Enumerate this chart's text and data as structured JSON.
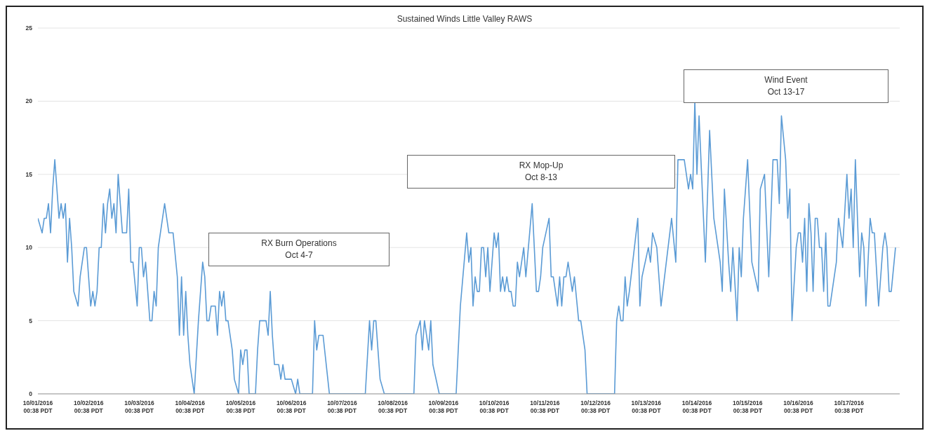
{
  "chart_data": {
    "type": "line",
    "title": "Sustained Winds Little Valley RAWS",
    "x": [
      "2016-10-01T00:38",
      "2016-10-01T02:38",
      "2016-10-01T03:38",
      "2016-10-01T04:38",
      "2016-10-01T05:38",
      "2016-10-01T06:38",
      "2016-10-01T07:38",
      "2016-10-01T08:38",
      "2016-10-01T09:38",
      "2016-10-01T10:38",
      "2016-10-01T11:38",
      "2016-10-01T12:38",
      "2016-10-01T13:38",
      "2016-10-01T14:38",
      "2016-10-01T15:38",
      "2016-10-01T16:38",
      "2016-10-01T17:38",
      "2016-10-01T19:38",
      "2016-10-01T20:38",
      "2016-10-01T22:38",
      "2016-10-01T23:38",
      "2016-10-02T00:38",
      "2016-10-02T01:38",
      "2016-10-02T02:38",
      "2016-10-02T03:38",
      "2016-10-02T04:38",
      "2016-10-02T05:38",
      "2016-10-02T06:38",
      "2016-10-02T07:38",
      "2016-10-02T08:38",
      "2016-10-02T09:38",
      "2016-10-02T10:38",
      "2016-10-02T11:38",
      "2016-10-02T12:38",
      "2016-10-02T13:38",
      "2016-10-02T14:38",
      "2016-10-02T16:38",
      "2016-10-02T18:38",
      "2016-10-02T19:38",
      "2016-10-02T20:38",
      "2016-10-02T21:38",
      "2016-10-02T23:38",
      "2016-10-03T00:38",
      "2016-10-03T01:38",
      "2016-10-03T02:38",
      "2016-10-03T03:38",
      "2016-10-03T04:38",
      "2016-10-03T05:38",
      "2016-10-03T06:38",
      "2016-10-03T07:38",
      "2016-10-03T08:38",
      "2016-10-03T09:38",
      "2016-10-03T12:38",
      "2016-10-03T14:38",
      "2016-10-03T16:38",
      "2016-10-03T18:38",
      "2016-10-03T19:38",
      "2016-10-03T20:38",
      "2016-10-03T21:38",
      "2016-10-03T22:38",
      "2016-10-03T23:38",
      "2016-10-04T00:38",
      "2016-10-04T01:38",
      "2016-10-04T02:38",
      "2016-10-04T04:38",
      "2016-10-04T06:38",
      "2016-10-04T07:38",
      "2016-10-04T08:38",
      "2016-10-04T09:38",
      "2016-10-04T10:38",
      "2016-10-04T12:38",
      "2016-10-04T13:38",
      "2016-10-04T14:38",
      "2016-10-04T15:38",
      "2016-10-04T16:38",
      "2016-10-04T17:38",
      "2016-10-04T18:38",
      "2016-10-04T20:38",
      "2016-10-04T21:38",
      "2016-10-04T23:38",
      "2016-10-05T00:38",
      "2016-10-05T01:38",
      "2016-10-05T02:38",
      "2016-10-05T03:38",
      "2016-10-05T04:38",
      "2016-10-05T07:38",
      "2016-10-05T08:38",
      "2016-10-05T09:38",
      "2016-10-05T12:38",
      "2016-10-05T13:38",
      "2016-10-05T14:38",
      "2016-10-05T15:38",
      "2016-10-05T16:38",
      "2016-10-05T18:38",
      "2016-10-05T19:38",
      "2016-10-05T20:38",
      "2016-10-05T21:38",
      "2016-10-06T00:38",
      "2016-10-06T02:38",
      "2016-10-06T03:38",
      "2016-10-06T04:38",
      "2016-10-06T10:38",
      "2016-10-06T11:38",
      "2016-10-06T12:38",
      "2016-10-06T13:38",
      "2016-10-06T15:38",
      "2016-10-06T18:38",
      "2016-10-07T11:38",
      "2016-10-07T13:38",
      "2016-10-07T14:38",
      "2016-10-07T15:38",
      "2016-10-07T16:38",
      "2016-10-07T18:38",
      "2016-10-07T20:38",
      "2016-10-08T10:38",
      "2016-10-08T11:38",
      "2016-10-08T13:38",
      "2016-10-08T14:38",
      "2016-10-08T15:38",
      "2016-10-08T17:38",
      "2016-10-08T18:38",
      "2016-10-08T19:38",
      "2016-10-08T22:38",
      "2016-10-09T06:38",
      "2016-10-09T08:38",
      "2016-10-09T11:38",
      "2016-10-09T12:38",
      "2016-10-09T13:38",
      "2016-10-09T14:38",
      "2016-10-09T15:38",
      "2016-10-09T16:38",
      "2016-10-09T17:38",
      "2016-10-09T18:38",
      "2016-10-09T19:38",
      "2016-10-09T20:38",
      "2016-10-09T21:38",
      "2016-10-09T22:38",
      "2016-10-09T23:38",
      "2016-10-10T00:38",
      "2016-10-10T01:38",
      "2016-10-10T02:38",
      "2016-10-10T03:38",
      "2016-10-10T04:38",
      "2016-10-10T05:38",
      "2016-10-10T06:38",
      "2016-10-10T07:38",
      "2016-10-10T08:38",
      "2016-10-10T09:38",
      "2016-10-10T10:38",
      "2016-10-10T11:38",
      "2016-10-10T12:38",
      "2016-10-10T14:38",
      "2016-10-10T15:38",
      "2016-10-10T18:38",
      "2016-10-10T19:38",
      "2016-10-10T20:38",
      "2016-10-10T21:38",
      "2016-10-10T22:38",
      "2016-10-10T23:38",
      "2016-10-11T02:38",
      "2016-10-11T03:38",
      "2016-10-11T04:38",
      "2016-10-11T06:38",
      "2016-10-11T07:38",
      "2016-10-11T08:38",
      "2016-10-11T09:38",
      "2016-10-11T10:38",
      "2016-10-11T11:38",
      "2016-10-11T12:38",
      "2016-10-11T13:38",
      "2016-10-11T14:38",
      "2016-10-11T16:38",
      "2016-10-11T17:38",
      "2016-10-11T19:38",
      "2016-10-11T20:38",
      "2016-10-12T09:38",
      "2016-10-12T10:38",
      "2016-10-12T11:38",
      "2016-10-12T12:38",
      "2016-10-12T13:38",
      "2016-10-12T14:38",
      "2016-10-12T15:38",
      "2016-10-12T16:38",
      "2016-10-12T20:38",
      "2016-10-12T21:38",
      "2016-10-12T22:38",
      "2016-10-13T01:38",
      "2016-10-13T02:38",
      "2016-10-13T03:38",
      "2016-10-13T05:38",
      "2016-10-13T07:38",
      "2016-10-13T12:38",
      "2016-10-13T14:38",
      "2016-10-13T15:38",
      "2016-10-13T18:38",
      "2016-10-13T20:38",
      "2016-10-13T21:38",
      "2016-10-13T22:38",
      "2016-10-13T23:38",
      "2016-10-14T00:38",
      "2016-10-14T01:38",
      "2016-10-14T04:38",
      "2016-10-14T06:38",
      "2016-10-14T08:38",
      "2016-10-14T11:38",
      "2016-10-14T12:38",
      "2016-10-14T13:38",
      "2016-10-14T15:38",
      "2016-10-14T16:38",
      "2016-10-14T17:38",
      "2016-10-14T19:38",
      "2016-10-14T20:38",
      "2016-10-14T21:38",
      "2016-10-14T22:38",
      "2016-10-15T00:38",
      "2016-10-15T02:38",
      "2016-10-15T05:38",
      "2016-10-15T06:38",
      "2016-10-15T08:38",
      "2016-10-15T10:38",
      "2016-10-15T12:38",
      "2016-10-15T14:38",
      "2016-10-15T15:38",
      "2016-10-15T16:38",
      "2016-10-15T18:38",
      "2016-10-15T19:38",
      "2016-10-15T20:38",
      "2016-10-15T21:38",
      "2016-10-15T23:38",
      "2016-10-16T00:38",
      "2016-10-16T01:38",
      "2016-10-16T02:38",
      "2016-10-16T03:38",
      "2016-10-16T04:38",
      "2016-10-16T05:38",
      "2016-10-16T06:38",
      "2016-10-16T07:38",
      "2016-10-16T08:38",
      "2016-10-16T09:38",
      "2016-10-16T10:38",
      "2016-10-16T11:38",
      "2016-10-16T12:38",
      "2016-10-16T13:38",
      "2016-10-16T14:38",
      "2016-10-16T15:38",
      "2016-10-16T17:38",
      "2016-10-16T18:38",
      "2016-10-16T19:38",
      "2016-10-16T21:38",
      "2016-10-16T23:38",
      "2016-10-17T00:38",
      "2016-10-17T01:38",
      "2016-10-17T02:38",
      "2016-10-17T03:38",
      "2016-10-17T05:38",
      "2016-10-17T06:38",
      "2016-10-17T07:38",
      "2016-10-17T08:38",
      "2016-10-17T09:38",
      "2016-10-17T10:38",
      "2016-10-17T11:38",
      "2016-10-17T12:38",
      "2016-10-17T14:38",
      "2016-10-17T16:38",
      "2016-10-17T17:38",
      "2016-10-17T18:38",
      "2016-10-17T19:38",
      "2016-10-17T20:38",
      "2016-10-17T22:38"
    ],
    "series": [
      {
        "color": "#5b9bd5",
        "values": [
          12,
          11,
          12,
          12,
          13,
          11,
          14,
          16,
          14,
          12,
          13,
          12,
          13,
          9,
          12,
          10,
          7,
          6,
          8,
          10,
          10,
          8,
          6,
          7,
          6,
          7,
          10,
          10,
          13,
          11,
          13,
          14,
          12,
          13,
          11,
          15,
          11,
          11,
          14,
          9,
          9,
          6,
          10,
          10,
          8,
          9,
          7,
          5,
          5,
          7,
          6,
          10,
          13,
          11,
          11,
          8,
          4,
          8,
          4,
          7,
          4,
          2,
          1,
          0,
          5,
          9,
          8,
          5,
          5,
          6,
          6,
          4,
          7,
          6,
          7,
          5,
          5,
          3,
          1,
          0,
          3,
          2,
          3,
          3,
          0,
          0,
          3,
          5,
          5,
          4,
          7,
          4,
          2,
          2,
          1,
          2,
          1,
          1,
          0,
          1,
          0,
          0,
          5,
          3,
          4,
          4,
          0,
          0,
          5,
          3,
          5,
          5,
          1,
          0,
          0,
          4,
          5,
          3,
          5,
          3,
          5,
          2,
          0,
          0,
          6,
          11,
          9,
          10,
          6,
          8,
          7,
          7,
          10,
          10,
          8,
          10,
          7,
          9,
          11,
          10,
          11,
          7,
          8,
          7,
          8,
          7,
          7,
          6,
          6,
          9,
          8,
          10,
          8,
          13,
          10,
          7,
          7,
          8,
          10,
          12,
          8,
          8,
          6,
          8,
          6,
          8,
          8,
          9,
          8,
          7,
          8,
          5,
          5,
          3,
          0,
          0,
          5,
          6,
          5,
          5,
          8,
          6,
          7,
          12,
          6,
          8,
          10,
          9,
          11,
          10,
          6,
          12,
          9,
          16,
          16,
          14,
          15,
          14,
          20,
          15,
          19,
          9,
          18,
          12,
          9,
          7,
          14,
          9,
          7,
          10,
          5,
          10,
          8,
          12,
          16,
          9,
          7,
          14,
          15,
          8,
          16,
          16,
          13,
          19,
          16,
          12,
          14,
          5,
          10,
          11,
          11,
          9,
          12,
          7,
          13,
          11,
          7,
          12,
          12,
          10,
          10,
          7,
          11,
          6,
          6,
          8,
          9,
          12,
          10,
          15,
          12,
          14,
          10,
          16,
          8,
          11,
          10,
          6,
          9,
          12,
          11,
          11,
          6,
          10,
          11,
          10,
          7,
          7,
          10
        ]
      }
    ],
    "xlim": [
      "2016-10-01T00:38",
      "2016-10-18T00:38"
    ],
    "xticks": [
      {
        "value": "2016-10-01T00:38",
        "label": "10/01/2016\n00:38 PDT"
      },
      {
        "value": "2016-10-02T00:38",
        "label": "10/02/2016\n00:38 PDT"
      },
      {
        "value": "2016-10-03T00:38",
        "label": "10/03/2016\n00:38 PDT"
      },
      {
        "value": "2016-10-04T00:38",
        "label": "10/04/2016\n00:38 PDT"
      },
      {
        "value": "2016-10-05T00:38",
        "label": "10/05/2016\n00:38 PDT"
      },
      {
        "value": "2016-10-06T00:38",
        "label": "10/06/2016\n00:38 PDT"
      },
      {
        "value": "2016-10-07T00:38",
        "label": "10/07/2016\n00:38 PDT"
      },
      {
        "value": "2016-10-08T00:38",
        "label": "10/08/2016\n00:38 PDT"
      },
      {
        "value": "2016-10-09T00:38",
        "label": "10/09/2016\n00:38 PDT"
      },
      {
        "value": "2016-10-10T00:38",
        "label": "10/10/2016\n00:38 PDT"
      },
      {
        "value": "2016-10-11T00:38",
        "label": "10/11/2016\n00:38 PDT"
      },
      {
        "value": "2016-10-12T00:38",
        "label": "10/12/2016\n00:38 PDT"
      },
      {
        "value": "2016-10-13T00:38",
        "label": "10/13/2016\n00:38 PDT"
      },
      {
        "value": "2016-10-14T00:38",
        "label": "10/14/2016\n00:38 PDT"
      },
      {
        "value": "2016-10-15T00:38",
        "label": "10/15/2016\n00:38 PDT"
      },
      {
        "value": "2016-10-16T00:38",
        "label": "10/16/2016\n00:38 PDT"
      },
      {
        "value": "2016-10-17T00:38",
        "label": "10/17/2016\n00:38 PDT"
      }
    ],
    "ylim": [
      0,
      25
    ],
    "yticks": [
      0,
      5,
      10,
      15,
      20,
      25
    ],
    "grid": "y",
    "marker": "none",
    "line_style": "solid",
    "annotations": [
      "RX Burn Operations\nOct 4-7",
      "RX Mop-Up\nOct 8-13",
      "Wind Event\nOct 13-17"
    ]
  }
}
